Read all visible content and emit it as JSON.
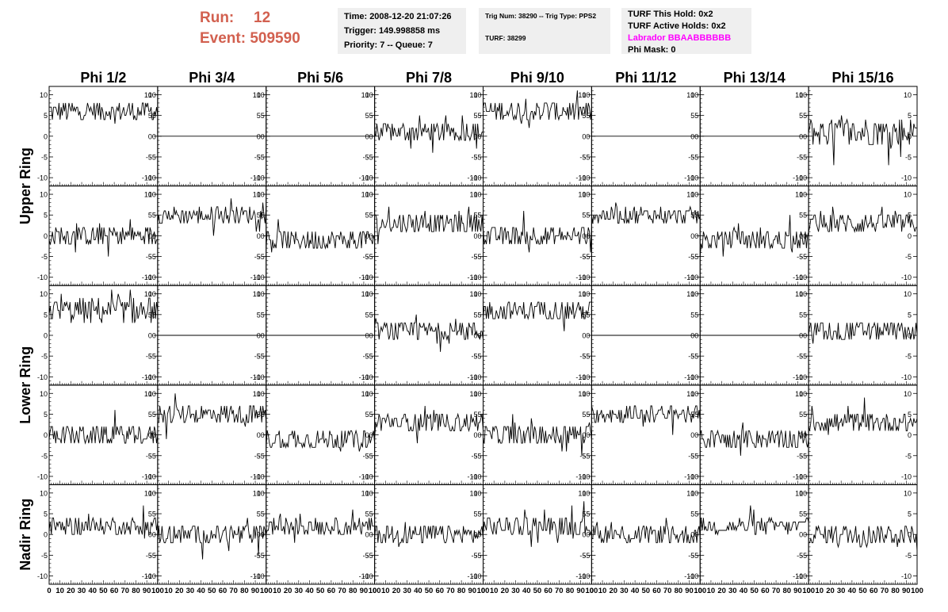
{
  "header": {
    "run_label": "Run:",
    "run_value": "12",
    "event_label": "Event:",
    "event_value": "509590"
  },
  "info_panel_1": {
    "time": "Time: 2008-12-20 21:07:26",
    "trigger": "Trigger: 149.998858 ms",
    "priority": "Priority: 7 -- Queue: 7"
  },
  "info_panel_2": {
    "trig": "Trig Num: 38290 -- Trig Type: PPS2",
    "turf": "TURF: 38299"
  },
  "info_panel_3": {
    "this_hold": "TURF This Hold: 0x2",
    "active_holds": "TURF Active Holds: 0x2",
    "labrador": "Labrador BBAABBBBBB",
    "phi_mask": "Phi Mask: 0"
  },
  "colors": {
    "run_text": "#d2604f",
    "labrador_text": "#ff00ff",
    "info_background": "#efefef",
    "trace": "#000000"
  },
  "chart_data": {
    "type": "line",
    "columns": [
      "Phi 1/2",
      "Phi 3/4",
      "Phi 5/6",
      "Phi 7/8",
      "Phi 9/10",
      "Phi 11/12",
      "Phi 13/14",
      "Phi 15/16"
    ],
    "row_groups": [
      {
        "label": "Upper Ring",
        "rows": 2
      },
      {
        "label": "Lower Ring",
        "rows": 2
      },
      {
        "label": "Nadir Ring",
        "rows": 1
      }
    ],
    "xlim": [
      0,
      100
    ],
    "x_ticks": [
      "0",
      "10",
      "20",
      "30",
      "40",
      "50",
      "60",
      "70",
      "80",
      "90",
      "100"
    ],
    "ylim": [
      -12,
      12
    ],
    "y_ticks": [
      "10",
      "5",
      "0",
      "-5",
      "-10"
    ],
    "samples": 100,
    "panels": [
      [
        {
          "offset": 6,
          "amp": 2.5
        },
        {
          "offset": 0,
          "amp": 0
        },
        {
          "offset": 0,
          "amp": 0
        },
        {
          "offset": 1,
          "amp": 2.5
        },
        {
          "offset": 6,
          "amp": 2.5
        },
        {
          "offset": 0,
          "amp": 0
        },
        {
          "offset": 0,
          "amp": 0
        },
        {
          "offset": 1,
          "amp": 3.5
        }
      ],
      [
        {
          "offset": 0,
          "amp": 2.5
        },
        {
          "offset": 5,
          "amp": 2
        },
        {
          "offset": -1,
          "amp": 2.5
        },
        {
          "offset": 3,
          "amp": 2.5
        },
        {
          "offset": 0,
          "amp": 2.5
        },
        {
          "offset": 5,
          "amp": 2
        },
        {
          "offset": -1,
          "amp": 2.5
        },
        {
          "offset": 3,
          "amp": 2.5
        }
      ],
      [
        {
          "offset": 6,
          "amp": 3
        },
        {
          "offset": 0,
          "amp": 0
        },
        {
          "offset": 0,
          "amp": 0
        },
        {
          "offset": 1,
          "amp": 2.5
        },
        {
          "offset": 6,
          "amp": 2.5
        },
        {
          "offset": 0,
          "amp": 0
        },
        {
          "offset": 0,
          "amp": 0
        },
        {
          "offset": 1,
          "amp": 2.5
        }
      ],
      [
        {
          "offset": 0,
          "amp": 2.5
        },
        {
          "offset": 5,
          "amp": 2.5
        },
        {
          "offset": -1,
          "amp": 2.5
        },
        {
          "offset": 3,
          "amp": 2.5
        },
        {
          "offset": 0,
          "amp": 2.5
        },
        {
          "offset": 5,
          "amp": 2
        },
        {
          "offset": -1,
          "amp": 2.5
        },
        {
          "offset": 3,
          "amp": 2.5
        }
      ],
      [
        {
          "offset": 2,
          "amp": 2
        },
        {
          "offset": 0,
          "amp": 2.5
        },
        {
          "offset": 2,
          "amp": 2
        },
        {
          "offset": 0,
          "amp": 2.5
        },
        {
          "offset": 2,
          "amp": 2.5
        },
        {
          "offset": 0,
          "amp": 2.5
        },
        {
          "offset": 2,
          "amp": 2
        },
        {
          "offset": 0,
          "amp": 2.5
        }
      ]
    ]
  }
}
